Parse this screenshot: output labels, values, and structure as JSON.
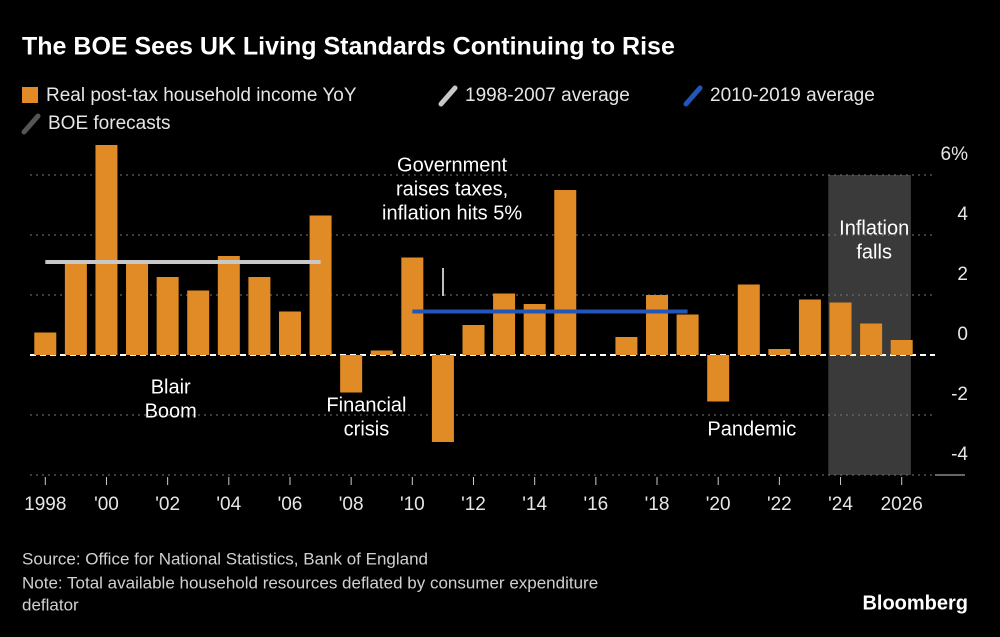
{
  "chart_data": {
    "type": "bar",
    "title": "The BOE Sees UK Living Standards Continuing to Rise",
    "x": [
      1998,
      1999,
      2000,
      2001,
      2002,
      2003,
      2004,
      2005,
      2006,
      2007,
      2008,
      2009,
      2010,
      2011,
      2012,
      2013,
      2014,
      2015,
      2016,
      2017,
      2018,
      2019,
      2020,
      2021,
      2022,
      2023,
      2024,
      2025,
      2026
    ],
    "series": [
      {
        "name": "Real post-tax household income YoY",
        "color": "#e08b26",
        "values": [
          0.75,
          3.05,
          7.0,
          3.15,
          2.6,
          2.15,
          3.3,
          2.6,
          1.45,
          4.65,
          -1.25,
          0.15,
          3.25,
          -2.9,
          1.0,
          2.05,
          1.7,
          5.5,
          0.0,
          0.6,
          2.0,
          1.35,
          -1.55,
          2.35,
          0.2,
          1.85,
          1.75,
          1.05,
          0.5
        ]
      }
    ],
    "reference_lines": [
      {
        "name": "1998-2007 average",
        "color": "#c8c8c8",
        "value": 3.1,
        "start": 1998,
        "end": 2007
      },
      {
        "name": "2010-2019 average",
        "color": "#2356b8",
        "value": 1.45,
        "start": 2010,
        "end": 2019
      }
    ],
    "forecast": {
      "name": "BOE forecasts",
      "color": "#3a3a3a",
      "start": 2023.6,
      "end": 2026.3
    },
    "xlim": [
      1997.5,
      2026.5
    ],
    "xticks": [
      1998,
      {
        "value": 2000,
        "label": "'00"
      },
      {
        "value": 2002,
        "label": "'02"
      },
      {
        "value": 2004,
        "label": "'04"
      },
      {
        "value": 2006,
        "label": "'06"
      },
      {
        "value": 2008,
        "label": "'08"
      },
      {
        "value": 2010,
        "label": "'10"
      },
      {
        "value": 2012,
        "label": "'12"
      },
      {
        "value": 2014,
        "label": "'14"
      },
      {
        "value": 2016,
        "label": "'16"
      },
      {
        "value": 2018,
        "label": "'18"
      },
      {
        "value": 2020,
        "label": "'20"
      },
      {
        "value": 2022,
        "label": "'22"
      },
      {
        "value": 2024,
        "label": "'24"
      },
      2026
    ],
    "ylim": [
      -4,
      7
    ],
    "yticks": [
      {
        "value": 6,
        "label": "6%"
      },
      4,
      2,
      0,
      -2,
      -4
    ],
    "grid": true,
    "annotations": [
      {
        "lines": [
          "Blair",
          "Boom"
        ],
        "x": 2002.1,
        "y": -1.5
      },
      {
        "lines": [
          "Financial",
          "crisis"
        ],
        "x": 2008.5,
        "y": -2.1
      },
      {
        "lines": [
          "Government",
          "raises taxes,",
          "inflation hits 5%"
        ],
        "x": 2011.3,
        "y": 5.5
      },
      {
        "lines": [
          "Pandemic"
        ],
        "x": 2021.1,
        "y": -2.5
      },
      {
        "lines": [
          "Inflation",
          "falls"
        ],
        "x": 2025.1,
        "y": 3.8
      }
    ],
    "source": "Source: Office for National Statistics, Bank of England",
    "note": [
      "Note: Total available household resources deflated by consumer expenditure",
      "deflator"
    ],
    "brand": "Bloomberg"
  }
}
